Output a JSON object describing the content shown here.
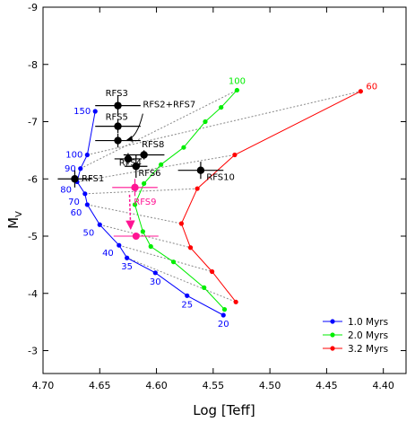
{
  "chart_data": {
    "type": "scatter",
    "xlabel": "Log [Teff]",
    "ylabel": "M",
    "ylabel_sub": "V",
    "xlim": [
      4.7,
      4.38
    ],
    "ylim": [
      -2.6,
      -9.0
    ],
    "xticks": [
      {
        "v": 4.7,
        "t": "4.70"
      },
      {
        "v": 4.65,
        "t": "4.65"
      },
      {
        "v": 4.6,
        "t": "4.60"
      },
      {
        "v": 4.55,
        "t": "4.55"
      },
      {
        "v": 4.5,
        "t": "4.50"
      },
      {
        "v": 4.45,
        "t": "4.45"
      },
      {
        "v": 4.4,
        "t": "4.40"
      }
    ],
    "yticks": [
      {
        "v": -9,
        "t": "-9"
      },
      {
        "v": -8,
        "t": "-8"
      },
      {
        "v": -7,
        "t": "-7"
      },
      {
        "v": -6,
        "t": "-6"
      },
      {
        "v": -5,
        "t": "-5"
      },
      {
        "v": -4,
        "t": "-4"
      },
      {
        "v": -3,
        "t": "-3"
      }
    ],
    "series": [
      {
        "name": "1.0 Myrs",
        "color": "#0000ff",
        "points": [
          [
            4.654,
            -7.18
          ],
          [
            4.661,
            -6.42
          ],
          [
            4.667,
            -6.18
          ],
          [
            4.67,
            -5.95
          ],
          [
            4.663,
            -5.74
          ],
          [
            4.661,
            -5.55
          ],
          [
            4.65,
            -5.2
          ],
          [
            4.633,
            -4.84
          ],
          [
            4.626,
            -4.62
          ],
          [
            4.601,
            -4.36
          ],
          [
            4.573,
            -3.96
          ],
          [
            4.541,
            -3.62
          ]
        ],
        "labels": [
          {
            "i": 0,
            "t": "150",
            "pos": "left"
          },
          {
            "i": 1,
            "t": "100",
            "pos": "left"
          },
          {
            "i": 2,
            "t": "90",
            "pos": "left"
          },
          {
            "i": 3,
            "t": "80",
            "pos": "below-left"
          },
          {
            "i": 4,
            "t": "70",
            "pos": "below-left"
          },
          {
            "i": 5,
            "t": "60",
            "pos": "below-left"
          },
          {
            "i": 6,
            "t": "50",
            "pos": "below-left"
          },
          {
            "i": 7,
            "t": "40",
            "pos": "below-left"
          },
          {
            "i": 8,
            "t": "35",
            "pos": "below"
          },
          {
            "i": 9,
            "t": "30",
            "pos": "below"
          },
          {
            "i": 10,
            "t": "25",
            "pos": "below"
          },
          {
            "i": 11,
            "t": "20",
            "pos": "below"
          }
        ]
      },
      {
        "name": "2.0 Myrs",
        "color": "#00ee00",
        "points": [
          [
            4.529,
            -7.55
          ],
          [
            4.543,
            -7.25
          ],
          [
            4.557,
            -7.0
          ],
          [
            4.576,
            -6.55
          ],
          [
            4.596,
            -6.25
          ],
          [
            4.611,
            -5.92
          ],
          [
            4.619,
            -5.55
          ],
          [
            4.612,
            -5.08
          ],
          [
            4.605,
            -4.82
          ],
          [
            4.585,
            -4.55
          ],
          [
            4.558,
            -4.1
          ],
          [
            4.54,
            -3.72
          ]
        ],
        "labels": [
          {
            "i": 0,
            "t": "100",
            "pos": "above"
          }
        ]
      },
      {
        "name": "3.2 Myrs",
        "color": "#ff0000",
        "points": [
          [
            4.42,
            -7.53
          ],
          [
            4.531,
            -6.42
          ],
          [
            4.564,
            -5.83
          ],
          [
            4.578,
            -5.22
          ],
          [
            4.57,
            -4.8
          ],
          [
            4.551,
            -4.38
          ],
          [
            4.53,
            -3.85
          ]
        ],
        "labels": [
          {
            "i": 0,
            "t": "60",
            "pos": "right"
          }
        ]
      }
    ],
    "isochrone_links": [
      [
        [
          4.661,
          -6.42
        ],
        [
          4.42,
          -7.53
        ]
      ],
      [
        [
          4.667,
          -6.18
        ],
        [
          4.529,
          -7.55
        ]
      ],
      [
        [
          4.67,
          -5.95
        ],
        [
          4.531,
          -6.42
        ]
      ],
      [
        [
          4.663,
          -5.74
        ],
        [
          4.564,
          -5.83
        ]
      ],
      [
        [
          4.661,
          -5.55
        ],
        [
          4.578,
          -5.22
        ]
      ],
      [
        [
          4.65,
          -5.2
        ],
        [
          4.57,
          -4.8
        ]
      ],
      [
        [
          4.633,
          -4.84
        ],
        [
          4.551,
          -4.38
        ]
      ],
      [
        [
          4.626,
          -4.62
        ],
        [
          4.53,
          -3.85
        ]
      ]
    ],
    "stars": [
      {
        "name": "RFS3",
        "x": 4.634,
        "y": -7.28,
        "xerr": 0.02,
        "yerr": 0.18,
        "color": "#000000"
      },
      {
        "name": "RFS2+RFS7",
        "x": 4.634,
        "y": -6.67,
        "xerr": 0.02,
        "yerr": 0.12,
        "color": "#000000"
      },
      {
        "name": "RFS5",
        "x": 4.634,
        "y": -6.92,
        "xerr": 0.02,
        "yerr": 0.12,
        "color": "#000000"
      },
      {
        "name": "RFS8",
        "x": 4.611,
        "y": -6.42,
        "xerr": 0.018,
        "yerr": 0.08,
        "color": "#000000"
      },
      {
        "name": "RFS4",
        "x": 4.625,
        "y": -6.35,
        "xerr": 0.012,
        "yerr": 0.1,
        "color": "#000000"
      },
      {
        "name": "RFS6",
        "x": 4.618,
        "y": -6.22,
        "xerr": 0.01,
        "yerr": 0.2,
        "color": "#000000"
      },
      {
        "name": "RFS1",
        "x": 4.672,
        "y": -6.0,
        "xerr": 0.015,
        "yerr": 0.15,
        "color": "#000000"
      },
      {
        "name": "RFS10",
        "x": 4.561,
        "y": -6.15,
        "xerr": 0.02,
        "yerr": 0.15,
        "color": "#000000"
      },
      {
        "name": "RFS9",
        "x": 4.619,
        "y": -5.85,
        "xerr": 0.02,
        "yerr": 0.15,
        "color": "#ff1493"
      }
    ],
    "rfs9_shift": {
      "from": [
        4.619,
        -5.85
      ],
      "to": [
        4.618,
        -5.0
      ],
      "color": "#ff1493"
    },
    "legend": {
      "placement": "bottom-right",
      "entries": [
        "1.0 Myrs",
        "2.0 Myrs",
        "3.2 Myrs"
      ]
    }
  }
}
